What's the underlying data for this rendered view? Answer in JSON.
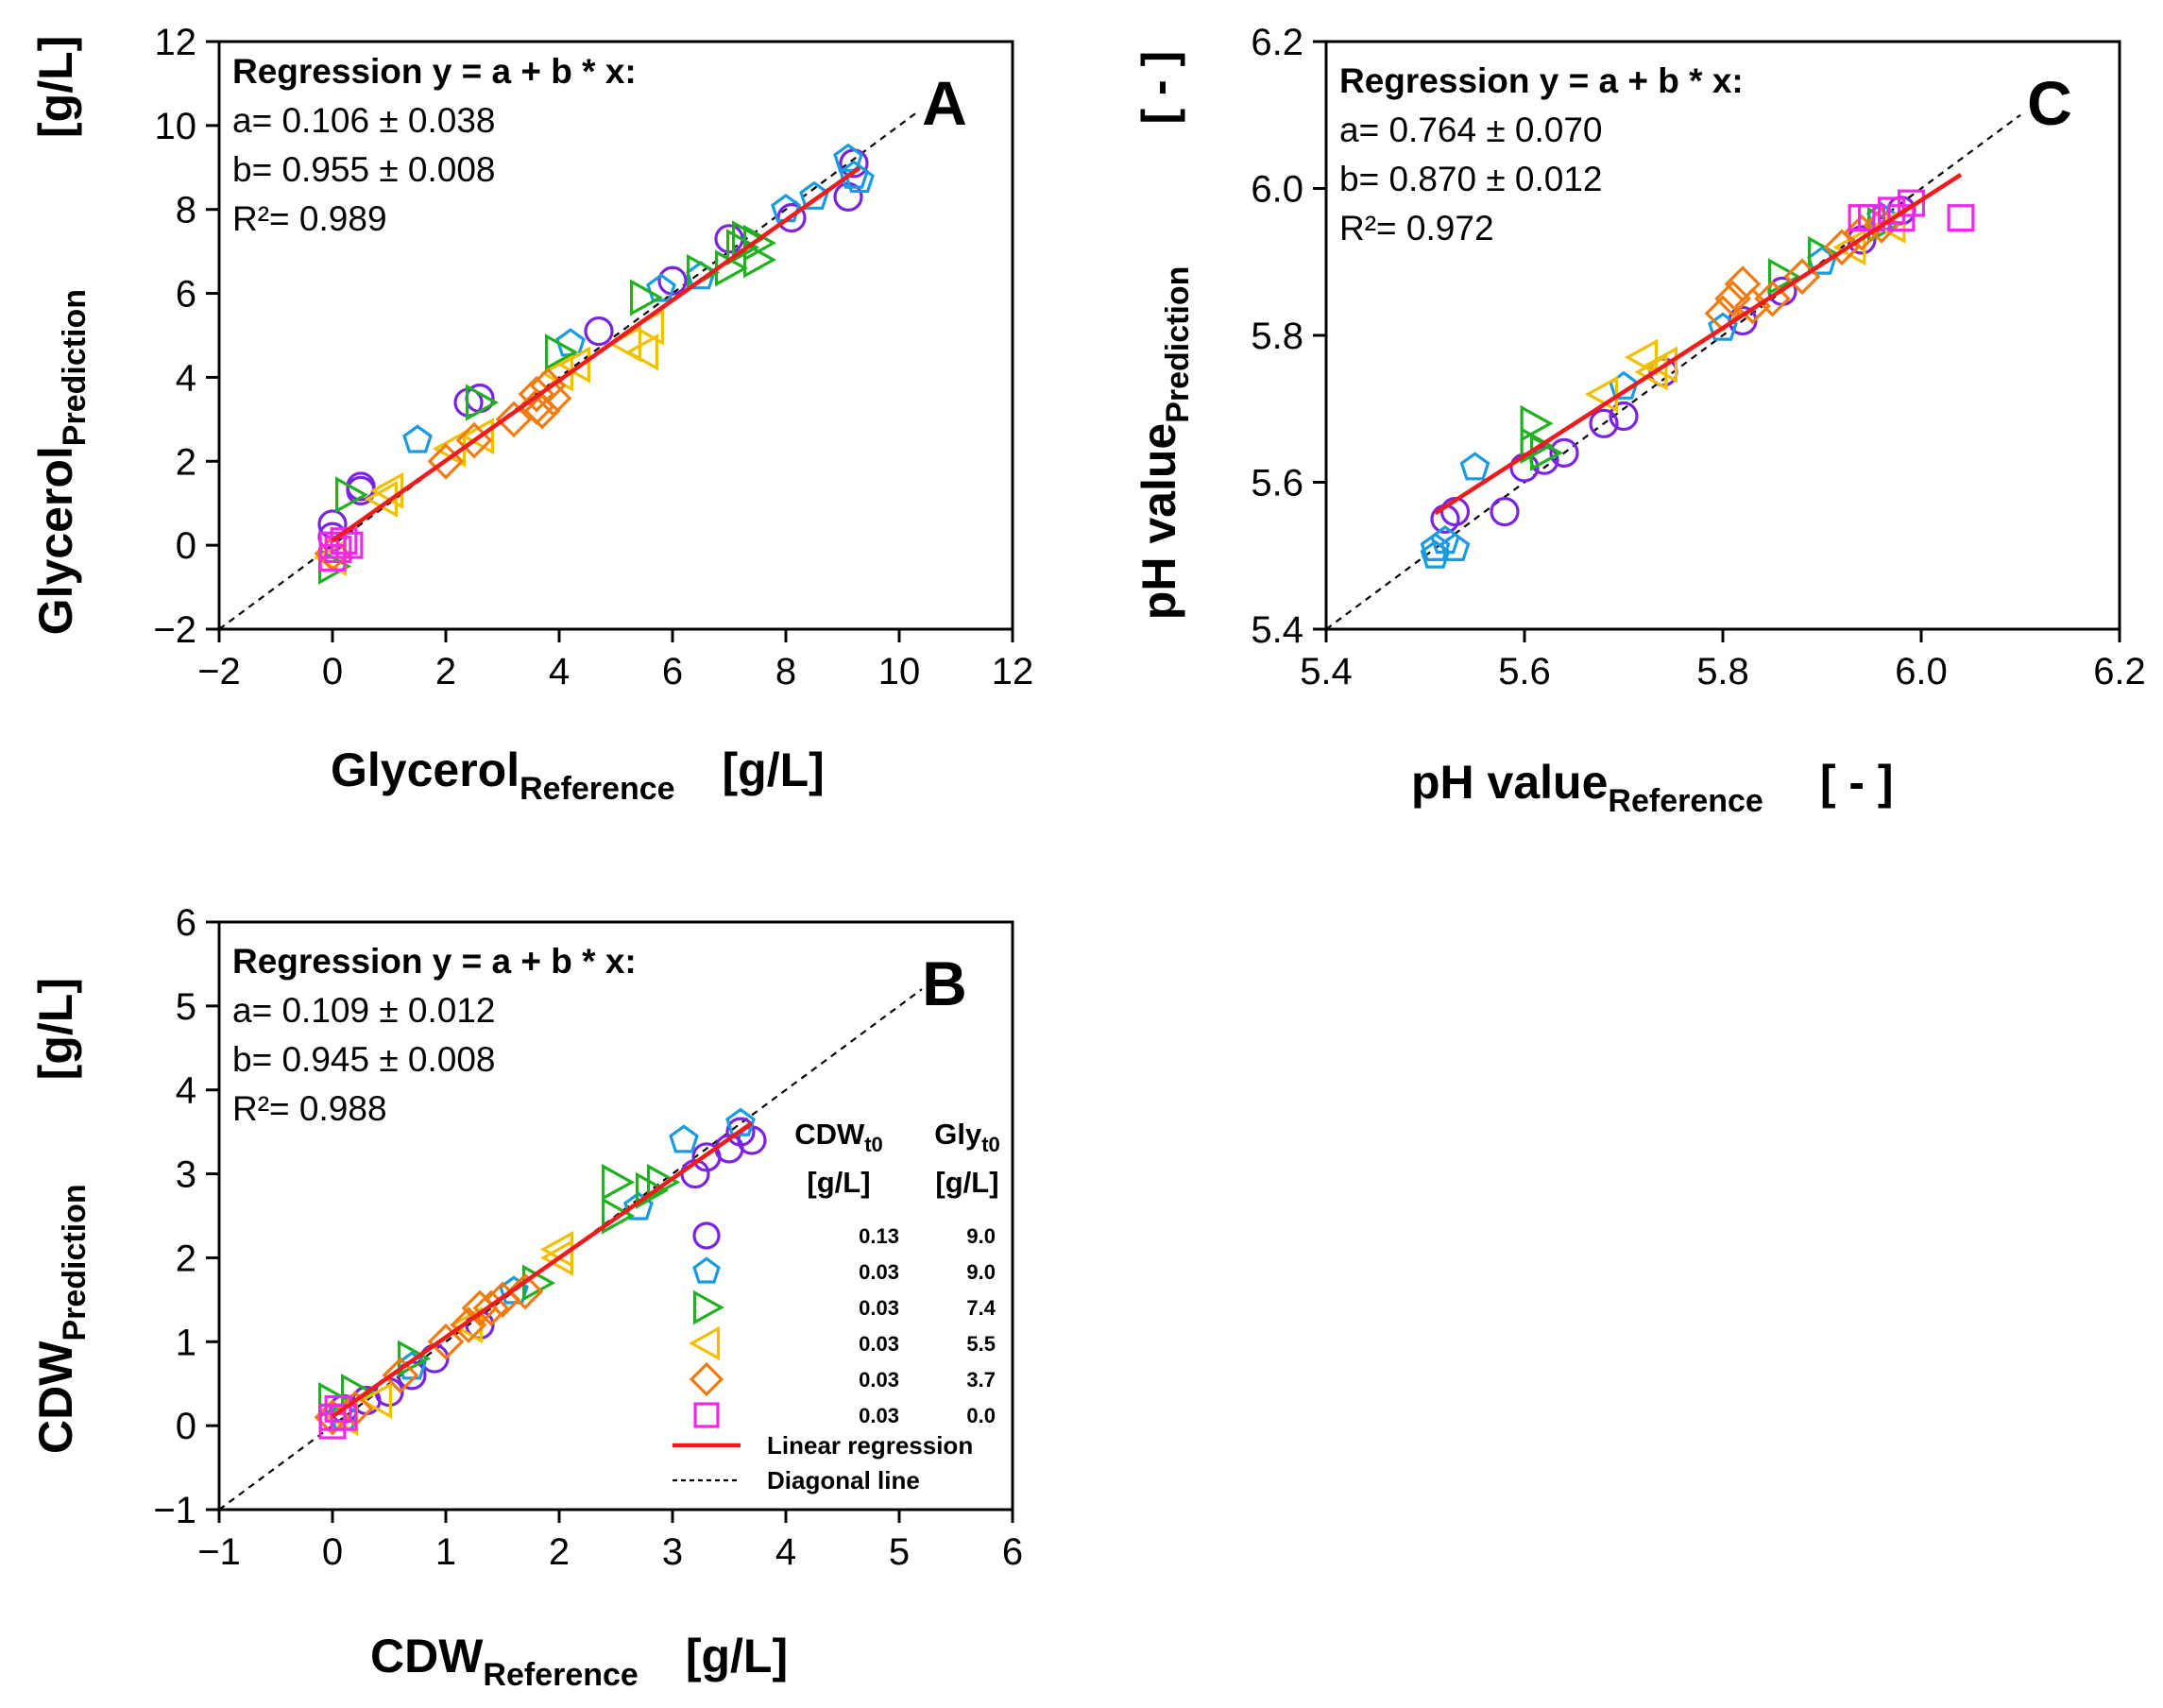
{
  "chart_data": [
    {
      "panel": "A",
      "type": "scatter",
      "xlabel": "Glycerol",
      "xlabel_sub": "Reference",
      "xlabel_unit": "[g/L]",
      "ylabel": "Glycerol",
      "ylabel_sub": "Prediction",
      "ylabel_unit": "[g/L]",
      "xlim": [
        -2,
        12
      ],
      "ylim": [
        -2,
        12
      ],
      "xticks": [
        -2,
        0,
        2,
        4,
        6,
        8,
        10,
        12
      ],
      "yticks": [
        -2,
        0,
        2,
        4,
        6,
        8,
        10,
        12
      ],
      "xtick_labels": [
        "−2",
        "0",
        "2",
        "4",
        "6",
        "8",
        "10",
        "12"
      ],
      "ytick_labels": [
        "−2",
        "0",
        "2",
        "4",
        "6",
        "8",
        "10",
        "12"
      ],
      "regression": {
        "title": "Regression y = a + b * x:",
        "a_text": "a=  0.106 ± 0.038",
        "b_text": "b=  0.955 ± 0.008",
        "r2_text": "R²= 0.989",
        "a": 0.106,
        "b": 0.955,
        "x_range": [
          0,
          9.3
        ]
      },
      "diagonal": [
        -2,
        10.3
      ],
      "series": [
        {
          "name": "0.13 / 9.0",
          "marker": "circle",
          "points": [
            [
              0,
              0.5
            ],
            [
              0,
              0.2
            ],
            [
              0.5,
              1.3
            ],
            [
              0.5,
              1.4
            ],
            [
              2.4,
              3.4
            ],
            [
              2.6,
              3.5
            ],
            [
              4.7,
              5.1
            ],
            [
              6,
              6.3
            ],
            [
              7,
              7.3
            ],
            [
              8.1,
              7.8
            ],
            [
              9.1,
              8.3
            ],
            [
              9.2,
              9.1
            ]
          ]
        },
        {
          "name": "0.03 / 9.0",
          "marker": "pentagon",
          "points": [
            [
              1.5,
              2.5
            ],
            [
              4.2,
              4.8
            ],
            [
              5.8,
              6.1
            ],
            [
              6.5,
              6.4
            ],
            [
              8,
              8
            ],
            [
              8.5,
              8.3
            ],
            [
              9.1,
              9.2
            ],
            [
              9.2,
              8.8
            ],
            [
              9.3,
              8.7
            ]
          ]
        },
        {
          "name": "0.03 / 7.4",
          "marker": "triangle-right",
          "points": [
            [
              0,
              -0.5
            ],
            [
              0.3,
              1.2
            ],
            [
              2.6,
              3.4
            ],
            [
              4,
              4.6
            ],
            [
              5.5,
              5.9
            ],
            [
              6.5,
              6.5
            ],
            [
              7,
              6.6
            ],
            [
              7.2,
              7.1
            ],
            [
              7.3,
              7.3
            ],
            [
              7.5,
              6.8
            ],
            [
              7.5,
              7.2
            ]
          ]
        },
        {
          "name": "0.03 / 5.5",
          "marker": "triangle-left",
          "points": [
            [
              0,
              -0.3
            ],
            [
              0.9,
              1.1
            ],
            [
              1,
              1.3
            ],
            [
              2.1,
              2.3
            ],
            [
              2.6,
              2.6
            ],
            [
              4,
              4.1
            ],
            [
              4.3,
              4.3
            ],
            [
              5.2,
              4.8
            ],
            [
              5.5,
              4.6
            ],
            [
              5.6,
              5.2
            ]
          ]
        },
        {
          "name": "0.03 / 3.7",
          "marker": "diamond",
          "points": [
            [
              0,
              -0.2
            ],
            [
              2,
              2
            ],
            [
              2.5,
              2.5
            ],
            [
              3.2,
              3
            ],
            [
              3.6,
              3.3
            ],
            [
              3.6,
              3.6
            ],
            [
              3.8,
              3.8
            ],
            [
              3.9,
              3.5
            ],
            [
              3.7,
              3.2
            ]
          ]
        },
        {
          "name": "0.03 / 0.0",
          "marker": "square",
          "points": [
            [
              0,
              0
            ],
            [
              0.1,
              -0.1
            ],
            [
              0.2,
              0.1
            ],
            [
              0,
              -0.3
            ],
            [
              0.3,
              0
            ]
          ]
        }
      ]
    },
    {
      "panel": "B",
      "type": "scatter",
      "xlabel": "CDW",
      "xlabel_sub": "Reference",
      "xlabel_unit": "[g/L]",
      "ylabel": "CDW",
      "ylabel_sub": "Prediction",
      "ylabel_unit": "[g/L]",
      "xlim": [
        -1,
        6
      ],
      "ylim": [
        -1,
        6
      ],
      "xticks": [
        -1,
        0,
        1,
        2,
        3,
        4,
        5,
        6
      ],
      "yticks": [
        -1,
        0,
        1,
        2,
        3,
        4,
        5,
        6
      ],
      "xtick_labels": [
        "−1",
        "0",
        "1",
        "2",
        "3",
        "4",
        "5",
        "6"
      ],
      "ytick_labels": [
        "−1",
        "0",
        "1",
        "2",
        "3",
        "4",
        "5",
        "6"
      ],
      "regression": {
        "title": "Regression y = a + b * x:",
        "a_text": "a=  0.109 ± 0.012",
        "b_text": "b=  0.945 ± 0.008",
        "r2_text": "R²= 0.988",
        "a": 0.109,
        "b": 0.945,
        "x_range": [
          0,
          3.7
        ]
      },
      "diagonal": [
        -1,
        5.2
      ],
      "series": [
        {
          "name": "0.13 / 9.0",
          "marker": "circle",
          "points": [
            [
              0.1,
              0.2
            ],
            [
              0.3,
              0.3
            ],
            [
              0.5,
              0.4
            ],
            [
              0.7,
              0.6
            ],
            [
              0.9,
              0.8
            ],
            [
              1.3,
              1.2
            ],
            [
              3.2,
              3
            ],
            [
              3.3,
              3.2
            ],
            [
              3.5,
              3.3
            ],
            [
              3.7,
              3.4
            ],
            [
              3.6,
              3.5
            ]
          ]
        },
        {
          "name": "0.03 / 9.0",
          "marker": "pentagon",
          "points": [
            [
              0.1,
              0.1
            ],
            [
              0.7,
              0.7
            ],
            [
              1.6,
              1.6
            ],
            [
              2.7,
              2.6
            ],
            [
              3.1,
              3.4
            ],
            [
              3.6,
              3.6
            ]
          ]
        },
        {
          "name": "0.03 / 7.4",
          "marker": "triangle-right",
          "points": [
            [
              0,
              0.3
            ],
            [
              0.2,
              0.4
            ],
            [
              0.7,
              0.8
            ],
            [
              1.8,
              1.7
            ],
            [
              2.5,
              2.9
            ],
            [
              2.5,
              2.5
            ],
            [
              2.8,
              2.8
            ],
            [
              2.9,
              2.9
            ]
          ]
        },
        {
          "name": "0.03 / 5.5",
          "marker": "triangle-left",
          "points": [
            [
              0.1,
              0.1
            ],
            [
              0.4,
              0.3
            ],
            [
              1.2,
              1.2
            ],
            [
              2,
              2.1
            ],
            [
              2,
              2
            ]
          ]
        },
        {
          "name": "0.03 / 3.7",
          "marker": "diamond",
          "points": [
            [
              0,
              0.1
            ],
            [
              0.2,
              0.2
            ],
            [
              0.6,
              0.6
            ],
            [
              1,
              1
            ],
            [
              1.2,
              1.2
            ],
            [
              1.3,
              1.4
            ],
            [
              1.4,
              1.4
            ],
            [
              1.5,
              1.5
            ],
            [
              1.7,
              1.6
            ]
          ]
        },
        {
          "name": "0.03 / 0.0",
          "marker": "square",
          "points": [
            [
              0,
              0.1
            ],
            [
              0.05,
              0.2
            ],
            [
              0.1,
              0.1
            ],
            [
              0,
              0
            ]
          ]
        }
      ],
      "legend": {
        "position": "lower-right",
        "col1_head": "CDW",
        "col1_sub": "t0",
        "col1_unit": "[g/L]",
        "col2_head": "Gly",
        "col2_sub": "t0",
        "col2_unit": "[g/L]",
        "rows": [
          {
            "cdw": "0.13",
            "gly": "9.0",
            "marker": "circle"
          },
          {
            "cdw": "0.03",
            "gly": "9.0",
            "marker": "pentagon"
          },
          {
            "cdw": "0.03",
            "gly": "7.4",
            "marker": "triangle-right"
          },
          {
            "cdw": "0.03",
            "gly": "5.5",
            "marker": "triangle-left"
          },
          {
            "cdw": "0.03",
            "gly": "3.7",
            "marker": "diamond"
          },
          {
            "cdw": "0.03",
            "gly": "0.0",
            "marker": "square"
          }
        ],
        "line_items": [
          "Linear regression",
          "Diagonal line"
        ]
      }
    },
    {
      "panel": "C",
      "type": "scatter",
      "xlabel": "pH value",
      "xlabel_sub": "Reference",
      "xlabel_unit": "[ - ]",
      "ylabel": "pH value",
      "ylabel_sub": "Prediction",
      "ylabel_unit": "[ - ]",
      "xlim": [
        5.4,
        6.2
      ],
      "ylim": [
        5.4,
        6.2
      ],
      "xticks": [
        5.4,
        5.6,
        5.8,
        6.0,
        6.2
      ],
      "yticks": [
        5.4,
        5.6,
        5.8,
        6.0,
        6.2
      ],
      "xtick_labels": [
        "5.4",
        "5.6",
        "5.8",
        "6.0",
        "6.2"
      ],
      "ytick_labels": [
        "5.4",
        "5.6",
        "5.8",
        "6.0",
        "6.2"
      ],
      "regression": {
        "title": "Regression y = a + b * x:",
        "a_text": "a=  0.764 ± 0.070",
        "b_text": "b=  0.870 ± 0.012",
        "r2_text": "R²= 0.972",
        "a": 0.764,
        "b": 0.87,
        "x_range": [
          5.51,
          6.04
        ]
      },
      "diagonal": [
        5.4,
        6.1
      ],
      "series": [
        {
          "name": "0.13 / 9.0",
          "marker": "circle",
          "points": [
            [
              5.52,
              5.55
            ],
            [
              5.53,
              5.56
            ],
            [
              5.58,
              5.56
            ],
            [
              5.6,
              5.62
            ],
            [
              5.62,
              5.63
            ],
            [
              5.64,
              5.64
            ],
            [
              5.68,
              5.68
            ],
            [
              5.7,
              5.69
            ],
            [
              5.74,
              5.75
            ],
            [
              5.82,
              5.82
            ],
            [
              5.86,
              5.86
            ],
            [
              5.94,
              5.93
            ],
            [
              5.98,
              5.97
            ]
          ]
        },
        {
          "name": "0.03 / 9.0",
          "marker": "pentagon",
          "points": [
            [
              5.51,
              5.51
            ],
            [
              5.51,
              5.5
            ],
            [
              5.52,
              5.52
            ],
            [
              5.53,
              5.51
            ],
            [
              5.55,
              5.62
            ],
            [
              5.7,
              5.73
            ],
            [
              5.8,
              5.81
            ],
            [
              5.9,
              5.9
            ],
            [
              5.96,
              5.96
            ]
          ]
        },
        {
          "name": "0.03 / 7.4",
          "marker": "triangle-right",
          "points": [
            [
              5.61,
              5.68
            ],
            [
              5.61,
              5.65
            ],
            [
              5.62,
              5.64
            ],
            [
              5.86,
              5.88
            ],
            [
              5.9,
              5.91
            ],
            [
              5.96,
              5.95
            ]
          ]
        },
        {
          "name": "0.03 / 5.5",
          "marker": "triangle-left",
          "points": [
            [
              5.68,
              5.72
            ],
            [
              5.72,
              5.77
            ],
            [
              5.73,
              5.75
            ],
            [
              5.74,
              5.76
            ],
            [
              5.93,
              5.92
            ],
            [
              5.97,
              5.95
            ]
          ]
        },
        {
          "name": "0.03 / 3.7",
          "marker": "diamond",
          "points": [
            [
              5.8,
              5.83
            ],
            [
              5.81,
              5.85
            ],
            [
              5.82,
              5.87
            ],
            [
              5.83,
              5.84
            ],
            [
              5.85,
              5.85
            ],
            [
              5.88,
              5.88
            ],
            [
              5.92,
              5.92
            ],
            [
              5.94,
              5.94
            ],
            [
              5.96,
              5.95
            ]
          ]
        },
        {
          "name": "0.03 / 0.0",
          "marker": "square",
          "points": [
            [
              5.94,
              5.96
            ],
            [
              5.95,
              5.96
            ],
            [
              5.97,
              5.97
            ],
            [
              5.98,
              5.96
            ],
            [
              5.99,
              5.98
            ],
            [
              6.04,
              5.96
            ]
          ]
        }
      ]
    }
  ],
  "colors": {
    "circle": "#7b24e0",
    "pentagon": "#1a9be0",
    "triangle-right": "#20b020",
    "triangle-left": "#f0c000",
    "diamond": "#f07b10",
    "square": "#f028e8",
    "regression": "#ee1c1c",
    "diagonal": "#000000"
  }
}
